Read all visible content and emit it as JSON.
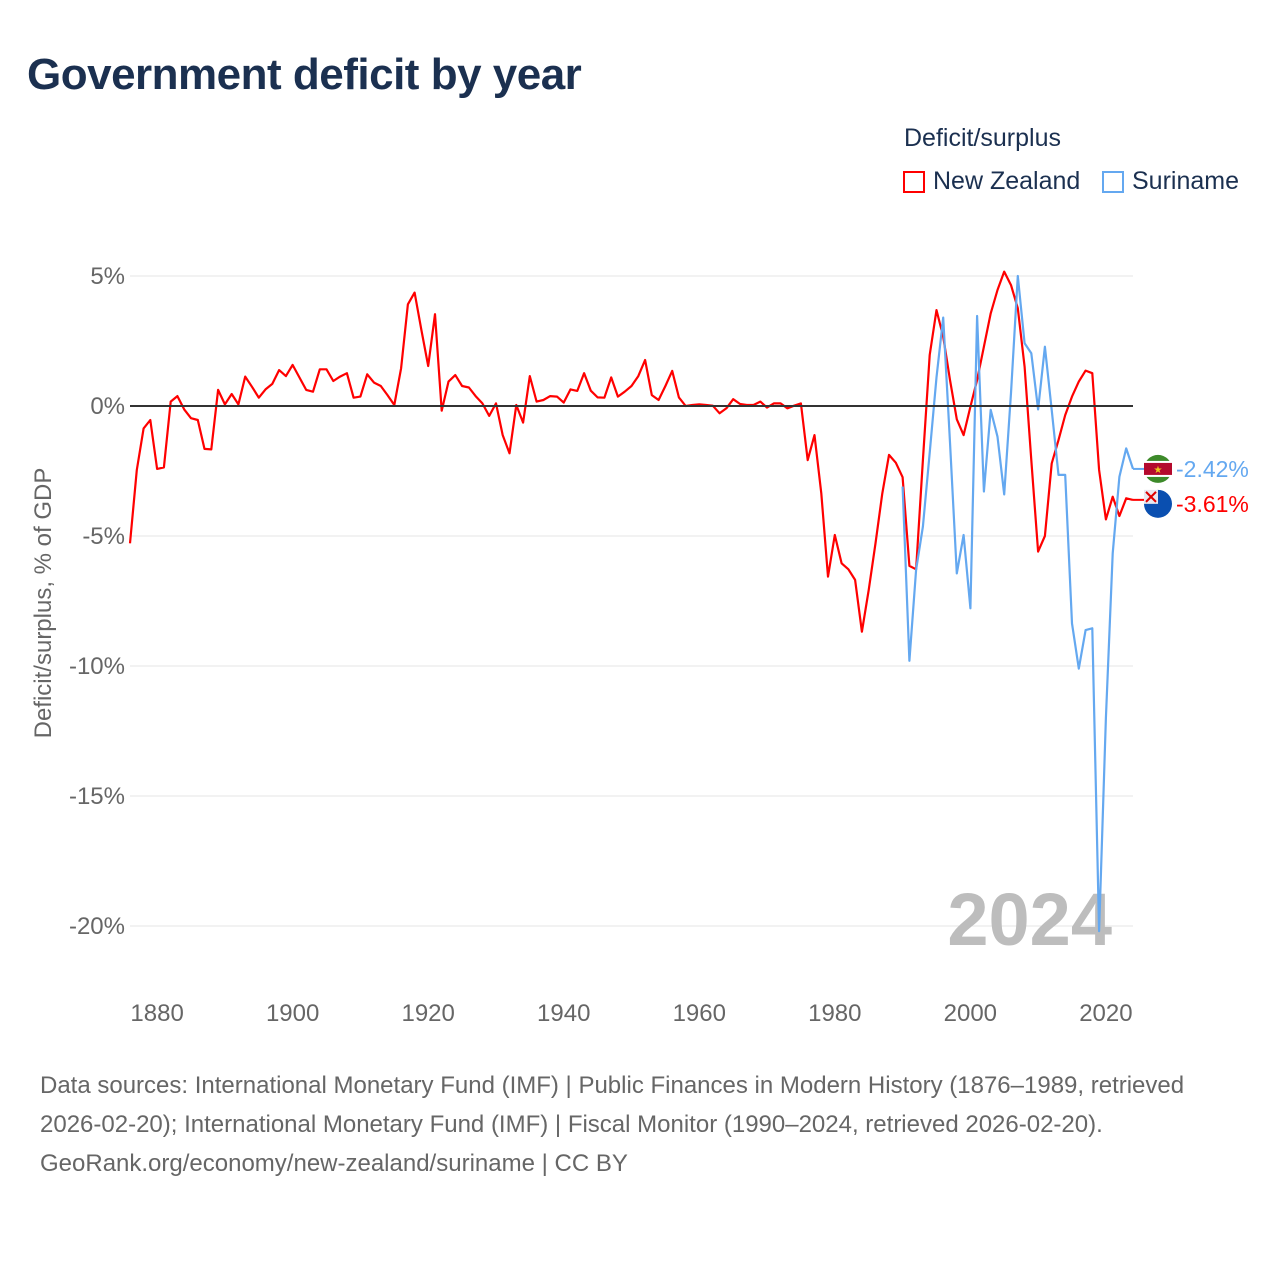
{
  "title": "Government deficit by year",
  "legend": {
    "title": "Deficit/surplus",
    "entries": [
      "New Zealand",
      "Suriname"
    ]
  },
  "colors": {
    "New Zealand": "#ff0000",
    "Suriname": "#64a8f0",
    "zero_line": "#333333",
    "grid": "#e6e6e6"
  },
  "watermark_year": "2024",
  "end_labels": [
    "-3.61%",
    "-2.42%"
  ],
  "footer": {
    "sources": "Data sources: International Monetary Fund (IMF) | Public Finances in Modern History (1876–1989, retrieved 2026-02-20); International Monetary Fund (IMF) | Fiscal Monitor (1990–2024, retrieved 2026-02-20).",
    "credit": "GeoRank.org/economy/new-zealand/suriname | CC BY"
  },
  "chart_data": {
    "type": "line",
    "title": "Government deficit by year",
    "xlabel": "",
    "ylabel": "Deficit/surplus, % of GDP",
    "xlim": [
      1876,
      2024
    ],
    "ylim": [
      -20,
      5
    ],
    "x_ticks": [
      1880,
      1900,
      1920,
      1940,
      1960,
      1980,
      2000,
      2020
    ],
    "x_tick_labels": [
      "1880",
      "1900",
      "1920",
      "1940",
      "1960",
      "1980",
      "2000",
      "2020"
    ],
    "y_ticks": [
      5,
      0,
      -5,
      -10,
      -15,
      -20
    ],
    "y_tick_labels": [
      "5%",
      "0%",
      "-5%",
      "-10%",
      "-15%",
      "-20%"
    ],
    "grid": true,
    "legend_position": "top-right",
    "series": [
      {
        "name": "New Zealand",
        "start_year": 1876,
        "values": [
          -5.28,
          -2.46,
          -0.86,
          -0.54,
          -2.42,
          -2.36,
          0.17,
          0.38,
          -0.13,
          -0.47,
          -0.54,
          -1.65,
          -1.67,
          0.62,
          0.06,
          0.46,
          0.06,
          1.13,
          0.74,
          0.32,
          0.64,
          0.85,
          1.38,
          1.15,
          1.58,
          1.1,
          0.62,
          0.55,
          1.41,
          1.41,
          0.96,
          1.13,
          1.26,
          0.32,
          0.36,
          1.22,
          0.9,
          0.77,
          0.42,
          0.04,
          1.45,
          3.91,
          4.36,
          2.92,
          1.54,
          3.53,
          -0.18,
          0.94,
          1.19,
          0.77,
          0.71,
          0.38,
          0.1,
          -0.38,
          0.1,
          -1.12,
          -1.82,
          0.04,
          -0.64,
          1.15,
          0.17,
          0.23,
          0.38,
          0.36,
          0.13,
          0.64,
          0.58,
          1.26,
          0.59,
          0.33,
          0.32,
          1.1,
          0.36,
          0.55,
          0.77,
          1.15,
          1.77,
          0.42,
          0.23,
          0.77,
          1.35,
          0.33,
          0.0,
          0.04,
          0.06,
          0.04,
          0.01,
          -0.28,
          -0.09,
          0.26,
          0.08,
          0.04,
          0.04,
          0.17,
          -0.06,
          0.1,
          0.1,
          -0.09,
          0.01,
          0.1,
          -2.08,
          -1.12,
          -3.36,
          -6.56,
          -4.96,
          -6.05,
          -6.28,
          -6.69,
          -8.68,
          -7.08,
          -5.28,
          -3.36,
          -1.88,
          -2.18,
          -2.74,
          -6.15,
          -6.28,
          -2.08,
          1.96,
          3.69,
          2.67,
          1.0,
          -0.51,
          -1.12,
          -0.03,
          1.0,
          2.28,
          3.56,
          4.46,
          5.17,
          4.65,
          3.76,
          1.51,
          -2.08,
          -5.6,
          -5.0,
          -2.21,
          -1.31,
          -0.35,
          0.36,
          0.94,
          1.36,
          1.26,
          -2.46,
          -4.36,
          -3.49,
          -4.23,
          -3.55,
          -3.61
        ]
      },
      {
        "name": "Suriname",
        "start_year": 1990,
        "values": [
          -3.1,
          -9.8,
          -6.3,
          -4.64,
          -1.8,
          1.1,
          3.4,
          -1.4,
          -6.44,
          -4.96,
          -7.78,
          3.46,
          -3.29,
          -0.15,
          -1.18,
          -3.4,
          0.5,
          5.0,
          2.41,
          2.03,
          -0.13,
          2.28,
          -0.15,
          -2.65,
          -2.65,
          -8.36,
          -10.1,
          -8.62,
          -8.55,
          -20.2,
          -12.0,
          -5.67,
          -2.72,
          -1.63,
          -2.42
        ]
      }
    ]
  }
}
